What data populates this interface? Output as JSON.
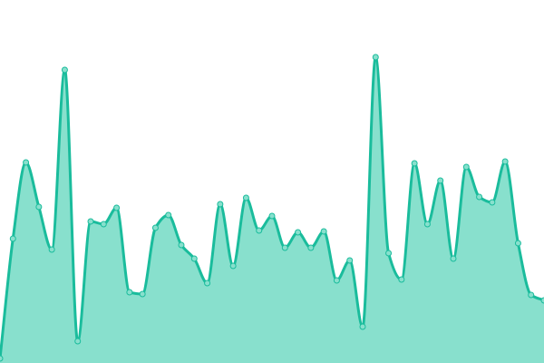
{
  "chart_data": {
    "type": "area",
    "title": "",
    "xlabel": "",
    "ylabel": "",
    "grid": false,
    "legend": "none",
    "ylim": [
      0,
      400
    ],
    "x": [
      0,
      1,
      2,
      3,
      4,
      5,
      6,
      7,
      8,
      9,
      10,
      11,
      12,
      13,
      14,
      15,
      16,
      17,
      18,
      19,
      20,
      21,
      22,
      23,
      24,
      25,
      26,
      27,
      28,
      29,
      30,
      31,
      32,
      33,
      34,
      35,
      36,
      37,
      38,
      39,
      40,
      41,
      42
    ],
    "values": [
      5,
      137,
      221,
      172,
      125,
      323,
      24,
      156,
      153,
      171,
      78,
      76,
      149,
      163,
      130,
      115,
      88,
      175,
      107,
      182,
      146,
      162,
      127,
      144,
      127,
      145,
      91,
      113,
      40,
      337,
      121,
      92,
      220,
      153,
      201,
      115,
      216,
      183,
      177,
      222,
      132,
      75,
      69
    ],
    "colors": {
      "line": "#1abc9c",
      "fill": "#88e0cd",
      "point_fill": "#88e0cd"
    }
  }
}
